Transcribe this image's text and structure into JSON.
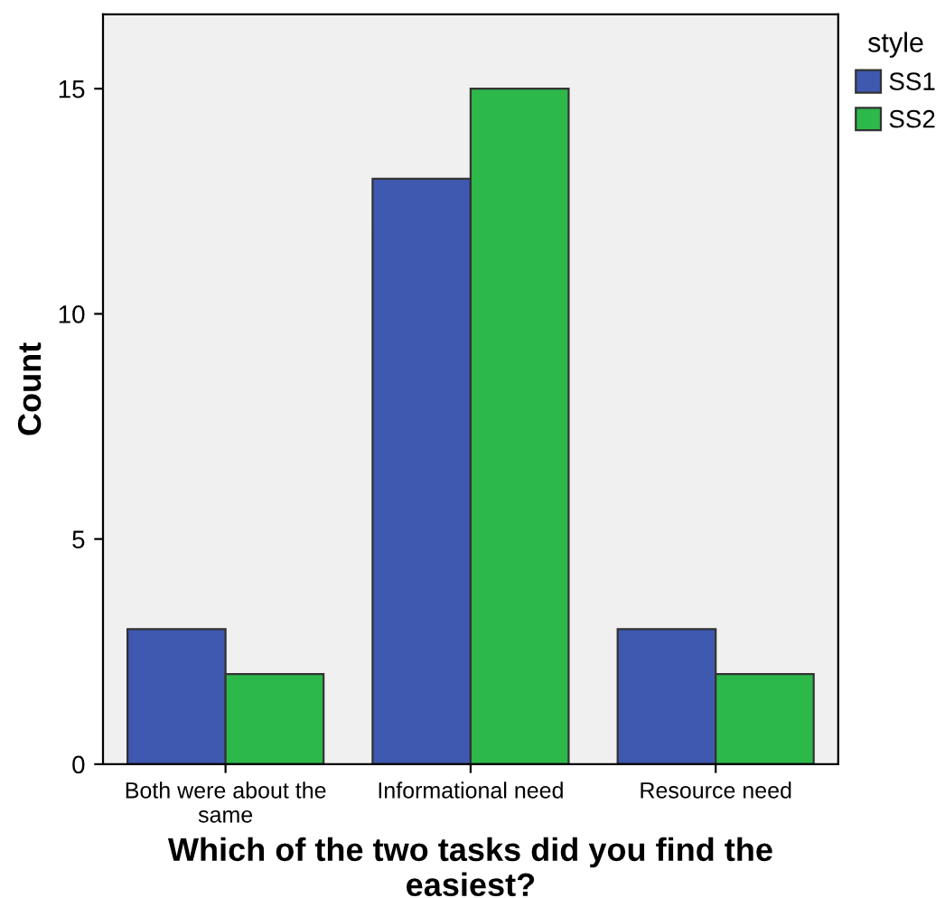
{
  "chart_data": {
    "type": "bar",
    "xlabel": "Which of the two tasks did you find the\neasiest?",
    "ylabel": "Count",
    "legend_title": "style",
    "categories": [
      "Both were about the\nsame",
      "Informational need",
      "Resource need"
    ],
    "series": [
      {
        "name": "SS1",
        "color": "#3f58b0",
        "values": [
          3,
          13,
          3
        ]
      },
      {
        "name": "SS2",
        "color": "#2db84a",
        "values": [
          2,
          15,
          2
        ]
      }
    ],
    "ylim": [
      0,
      16.65
    ],
    "yticks": [
      0,
      5,
      10,
      15
    ],
    "grid": false,
    "legend": "top right"
  }
}
